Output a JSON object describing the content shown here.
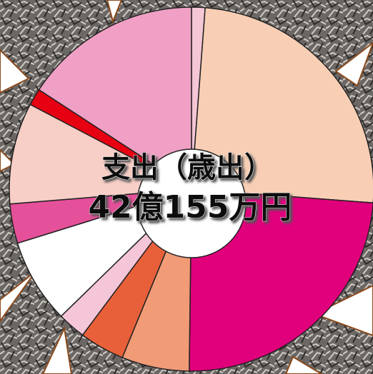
{
  "chart_data": {
    "type": "pie",
    "title": "支出（歳出）",
    "subtitle": "42億155万円",
    "values": [
      1.2,
      25,
      24,
      6,
      4,
      2.5,
      7.5,
      3.5,
      9,
      1.5,
      15.8
    ],
    "colors": [
      "#f4c6d6",
      "#f8cfb5",
      "#e0007b",
      "#f19b77",
      "#e8603a",
      "#f5c6d8",
      "#ffffff",
      "#e5509a",
      "#f8cfc6",
      "#e60012",
      "#f0a0c4"
    ]
  }
}
